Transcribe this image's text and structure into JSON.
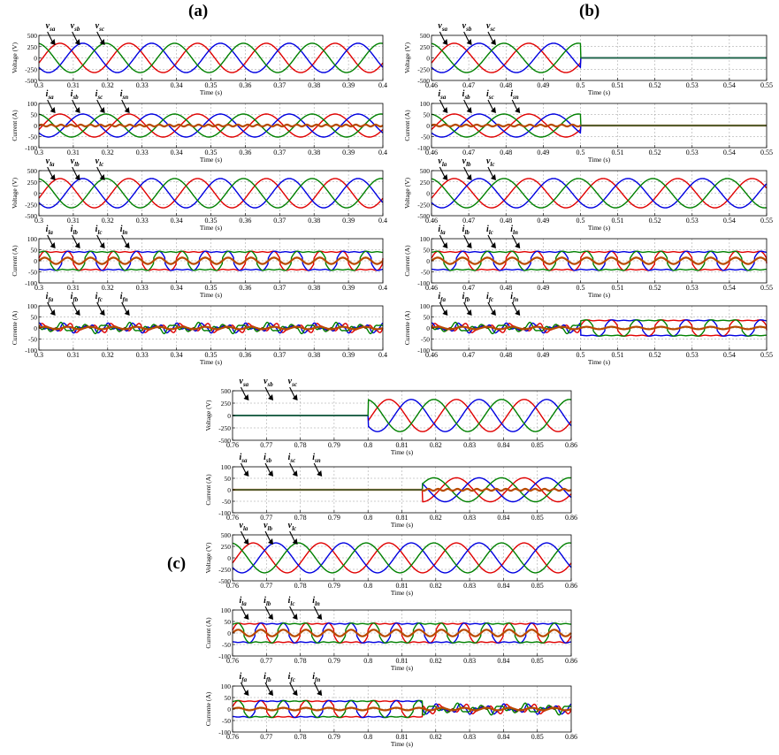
{
  "figure": {
    "panel_labels": [
      "(a)",
      "(b)",
      "(c)"
    ],
    "colors": {
      "phase_a": "#e00000",
      "phase_b": "#0000e0",
      "phase_c": "#008000",
      "neutral": "#b84a00",
      "grid": "#9a9a9a"
    }
  },
  "chart_data": [
    {
      "panel": "(a)",
      "type": "line",
      "ylabel": "Voltage (V)",
      "xlabel": "Time (s)",
      "xlim": [
        0.3,
        0.4
      ],
      "ylim": [
        -500,
        500
      ],
      "xticks": [
        "0.3",
        "0.31",
        "0.32",
        "0.33",
        "0.34",
        "0.35",
        "0.36",
        "0.37",
        "0.38",
        "0.39",
        "0.4"
      ],
      "yticks": [
        "500",
        "250",
        "0",
        "-250",
        "-500"
      ],
      "amplitude": 325,
      "frequency_hz": 50,
      "signal": "sine",
      "series": [
        {
          "label": "v_sa"
        },
        {
          "label": "v_sb"
        },
        {
          "label": "v_sc"
        }
      ],
      "off_intervals": []
    },
    {
      "panel": "(a)",
      "type": "line",
      "ylabel": "Current (A)",
      "xlabel": "Time (s)",
      "xlim": [
        0.3,
        0.4
      ],
      "ylim": [
        -100,
        100
      ],
      "xticks": [
        "0.3",
        "0.31",
        "0.32",
        "0.33",
        "0.34",
        "0.35",
        "0.36",
        "0.37",
        "0.38",
        "0.39",
        "0.4"
      ],
      "yticks": [
        "100",
        "50",
        "0",
        "-50",
        "-100"
      ],
      "amplitude": 52,
      "frequency_hz": 50,
      "signal": "sine",
      "series": [
        {
          "label": "i_sa"
        },
        {
          "label": "i_sb"
        },
        {
          "label": "i_sc"
        },
        {
          "label": "i_sn"
        }
      ],
      "off_intervals": []
    },
    {
      "panel": "(a)",
      "type": "line",
      "ylabel": "Voltage (V)",
      "xlabel": "Time (s)",
      "xlim": [
        0.3,
        0.4
      ],
      "ylim": [
        -500,
        500
      ],
      "xticks": [
        "0.3",
        "0.31",
        "0.32",
        "0.33",
        "0.34",
        "0.35",
        "0.36",
        "0.37",
        "0.38",
        "0.39",
        "0.4"
      ],
      "yticks": [
        "500",
        "250",
        "0",
        "-250",
        "-500"
      ],
      "amplitude": 325,
      "frequency_hz": 50,
      "signal": "sine",
      "series": [
        {
          "label": "v_la"
        },
        {
          "label": "v_lb"
        },
        {
          "label": "v_lc"
        }
      ],
      "off_intervals": []
    },
    {
      "panel": "(a)",
      "type": "line",
      "ylabel": "Current (A)",
      "xlabel": "Time (s)",
      "xlim": [
        0.3,
        0.4
      ],
      "ylim": [
        -100,
        100
      ],
      "xticks": [
        "0.3",
        "0.31",
        "0.32",
        "0.33",
        "0.34",
        "0.35",
        "0.36",
        "0.37",
        "0.38",
        "0.39",
        "0.4"
      ],
      "yticks": [
        "100",
        "50",
        "0",
        "-50",
        "-100"
      ],
      "amplitude": 65,
      "frequency_hz": 50,
      "signal": "load",
      "series": [
        {
          "label": "i_la"
        },
        {
          "label": "i_lb"
        },
        {
          "label": "i_lc"
        },
        {
          "label": "i_ln"
        }
      ],
      "off_intervals": []
    },
    {
      "panel": "(a)",
      "type": "line",
      "ylabel": "Currente (A)",
      "xlabel": "Time (s)",
      "xlim": [
        0.3,
        0.4
      ],
      "ylim": [
        -100,
        100
      ],
      "xticks": [
        "0.3",
        "0.31",
        "0.32",
        "0.33",
        "0.34",
        "0.35",
        "0.36",
        "0.37",
        "0.38",
        "0.39",
        "0.4"
      ],
      "yticks": [
        "100",
        "50",
        "0",
        "-50",
        "-100"
      ],
      "amplitude": 25,
      "frequency_hz": 50,
      "signal": "filter",
      "series": [
        {
          "label": "i_fa"
        },
        {
          "label": "i_fb"
        },
        {
          "label": "i_fc"
        },
        {
          "label": "i_fn"
        }
      ],
      "off_intervals": []
    },
    {
      "panel": "(b)",
      "type": "line",
      "ylabel": "Voltage (V)",
      "xlabel": "Time (s)",
      "xlim": [
        0.46,
        0.55
      ],
      "ylim": [
        -500,
        500
      ],
      "xticks": [
        "0.46",
        "0.47",
        "0.48",
        "0.49",
        "0.5",
        "0.51",
        "0.52",
        "0.53",
        "0.54",
        "0.55"
      ],
      "yticks": [
        "500",
        "250",
        "0",
        "-250",
        "-500"
      ],
      "amplitude": 325,
      "frequency_hz": 50,
      "signal": "sine",
      "series": [
        {
          "label": "v_sa"
        },
        {
          "label": "v_sb"
        },
        {
          "label": "v_sc"
        }
      ],
      "off_intervals": [
        [
          0.5,
          0.55
        ]
      ]
    },
    {
      "panel": "(b)",
      "type": "line",
      "ylabel": "Current (A)",
      "xlabel": "Time (s)",
      "xlim": [
        0.46,
        0.55
      ],
      "ylim": [
        -100,
        100
      ],
      "xticks": [
        "0.46",
        "0.47",
        "0.48",
        "0.49",
        "0.5",
        "0.51",
        "0.52",
        "0.53",
        "0.54",
        "0.55"
      ],
      "yticks": [
        "100",
        "50",
        "0",
        "-50",
        "-100"
      ],
      "amplitude": 52,
      "frequency_hz": 50,
      "signal": "sine",
      "series": [
        {
          "label": "i_sa"
        },
        {
          "label": "i_sb"
        },
        {
          "label": "i_sc"
        },
        {
          "label": "i_sn"
        }
      ],
      "off_intervals": [
        [
          0.5,
          0.55
        ]
      ]
    },
    {
      "panel": "(b)",
      "type": "line",
      "ylabel": "Voltage (V)",
      "xlabel": "Time (s)",
      "xlim": [
        0.46,
        0.55
      ],
      "ylim": [
        -500,
        500
      ],
      "xticks": [
        "0.46",
        "0.47",
        "0.48",
        "0.49",
        "0.5",
        "0.51",
        "0.52",
        "0.53",
        "0.54",
        "0.55"
      ],
      "yticks": [
        "500",
        "250",
        "0",
        "-250",
        "-500"
      ],
      "amplitude": 325,
      "frequency_hz": 50,
      "signal": "sine",
      "series": [
        {
          "label": "v_la"
        },
        {
          "label": "v_lb"
        },
        {
          "label": "v_lc"
        }
      ],
      "off_intervals": []
    },
    {
      "panel": "(b)",
      "type": "line",
      "ylabel": "Current (A)",
      "xlabel": "Time (s)",
      "xlim": [
        0.46,
        0.55
      ],
      "ylim": [
        -100,
        100
      ],
      "xticks": [
        "0.46",
        "0.47",
        "0.48",
        "0.49",
        "0.5",
        "0.51",
        "0.52",
        "0.53",
        "0.54",
        "0.55"
      ],
      "yticks": [
        "100",
        "50",
        "0",
        "-50",
        "-100"
      ],
      "amplitude": 65,
      "frequency_hz": 50,
      "signal": "load",
      "series": [
        {
          "label": "i_la"
        },
        {
          "label": "i_lb"
        },
        {
          "label": "i_lc"
        },
        {
          "label": "i_ln"
        }
      ],
      "off_intervals": []
    },
    {
      "panel": "(b)",
      "type": "line",
      "ylabel": "Currente (A)",
      "xlabel": "Time (s)",
      "xlim": [
        0.46,
        0.55
      ],
      "ylim": [
        -100,
        100
      ],
      "xticks": [
        "0.46",
        "0.47",
        "0.48",
        "0.49",
        "0.5",
        "0.51",
        "0.52",
        "0.53",
        "0.54",
        "0.55"
      ],
      "yticks": [
        "100",
        "50",
        "0",
        "-50",
        "-100"
      ],
      "amplitude": 25,
      "frequency_hz": 50,
      "signal": "filter",
      "load_after": 0.5,
      "series": [
        {
          "label": "i_fa"
        },
        {
          "label": "i_fb"
        },
        {
          "label": "i_fc"
        },
        {
          "label": "i_fn"
        }
      ],
      "off_intervals": []
    },
    {
      "panel": "(c)",
      "type": "line",
      "ylabel": "Voltage (V)",
      "xlabel": "Time (s)",
      "xlim": [
        0.76,
        0.86
      ],
      "ylim": [
        -500,
        500
      ],
      "xticks": [
        "0.76",
        "0.77",
        "0.78",
        "0.79",
        "0.8",
        "0.81",
        "0.82",
        "0.83",
        "0.84",
        "0.85",
        "0.86"
      ],
      "yticks": [
        "500",
        "250",
        "0",
        "-250",
        "-500"
      ],
      "amplitude": 325,
      "frequency_hz": 50,
      "signal": "sine",
      "series": [
        {
          "label": "v_sa"
        },
        {
          "label": "v_sb"
        },
        {
          "label": "v_sc"
        }
      ],
      "off_intervals": [
        [
          0.76,
          0.8
        ]
      ]
    },
    {
      "panel": "(c)",
      "type": "line",
      "ylabel": "Current (A)",
      "xlabel": "Time (s)",
      "xlim": [
        0.76,
        0.86
      ],
      "ylim": [
        -100,
        100
      ],
      "xticks": [
        "0.76",
        "0.77",
        "0.78",
        "0.79",
        "0.8",
        "0.81",
        "0.82",
        "0.83",
        "0.84",
        "0.85",
        "0.86"
      ],
      "yticks": [
        "100",
        "50",
        "0",
        "-50",
        "-100"
      ],
      "amplitude": 52,
      "frequency_hz": 50,
      "signal": "sine",
      "series": [
        {
          "label": "i_sa"
        },
        {
          "label": "i_sb"
        },
        {
          "label": "i_sc"
        },
        {
          "label": "i_sn"
        }
      ],
      "off_intervals": [
        [
          0.76,
          0.816
        ]
      ]
    },
    {
      "panel": "(c)",
      "type": "line",
      "ylabel": "Voltage (V)",
      "xlabel": "Time (s)",
      "xlim": [
        0.76,
        0.86
      ],
      "ylim": [
        -500,
        500
      ],
      "xticks": [
        "0.76",
        "0.77",
        "0.78",
        "0.79",
        "0.8",
        "0.81",
        "0.82",
        "0.83",
        "0.84",
        "0.85",
        "0.86"
      ],
      "yticks": [
        "500",
        "250",
        "0",
        "-250",
        "-500"
      ],
      "amplitude": 325,
      "frequency_hz": 50,
      "signal": "sine",
      "series": [
        {
          "label": "v_la"
        },
        {
          "label": "v_lb"
        },
        {
          "label": "v_lc"
        }
      ],
      "off_intervals": []
    },
    {
      "panel": "(c)",
      "type": "line",
      "ylabel": "Current (A)",
      "xlabel": "Time (s)",
      "xlim": [
        0.76,
        0.86
      ],
      "ylim": [
        -100,
        100
      ],
      "xticks": [
        "0.76",
        "0.77",
        "0.78",
        "0.79",
        "0.8",
        "0.81",
        "0.82",
        "0.83",
        "0.84",
        "0.85",
        "0.86"
      ],
      "yticks": [
        "100",
        "50",
        "0",
        "-50",
        "-100"
      ],
      "amplitude": 65,
      "frequency_hz": 50,
      "signal": "load",
      "series": [
        {
          "label": "i_la"
        },
        {
          "label": "i_lb"
        },
        {
          "label": "i_lc"
        },
        {
          "label": "i_ln"
        }
      ],
      "off_intervals": []
    },
    {
      "panel": "(c)",
      "type": "line",
      "ylabel": "Currente (A)",
      "xlabel": "Time (s)",
      "xlim": [
        0.76,
        0.86
      ],
      "ylim": [
        -100,
        100
      ],
      "xticks": [
        "0.76",
        "0.77",
        "0.78",
        "0.79",
        "0.8",
        "0.81",
        "0.82",
        "0.83",
        "0.84",
        "0.85",
        "0.86"
      ],
      "yticks": [
        "100",
        "50",
        "0",
        "-50",
        "-100"
      ],
      "amplitude": 25,
      "frequency_hz": 50,
      "signal": "filter",
      "load_before": 0.816,
      "series": [
        {
          "label": "i_fa"
        },
        {
          "label": "i_fb"
        },
        {
          "label": "i_fc"
        },
        {
          "label": "i_fn"
        }
      ],
      "off_intervals": []
    }
  ]
}
